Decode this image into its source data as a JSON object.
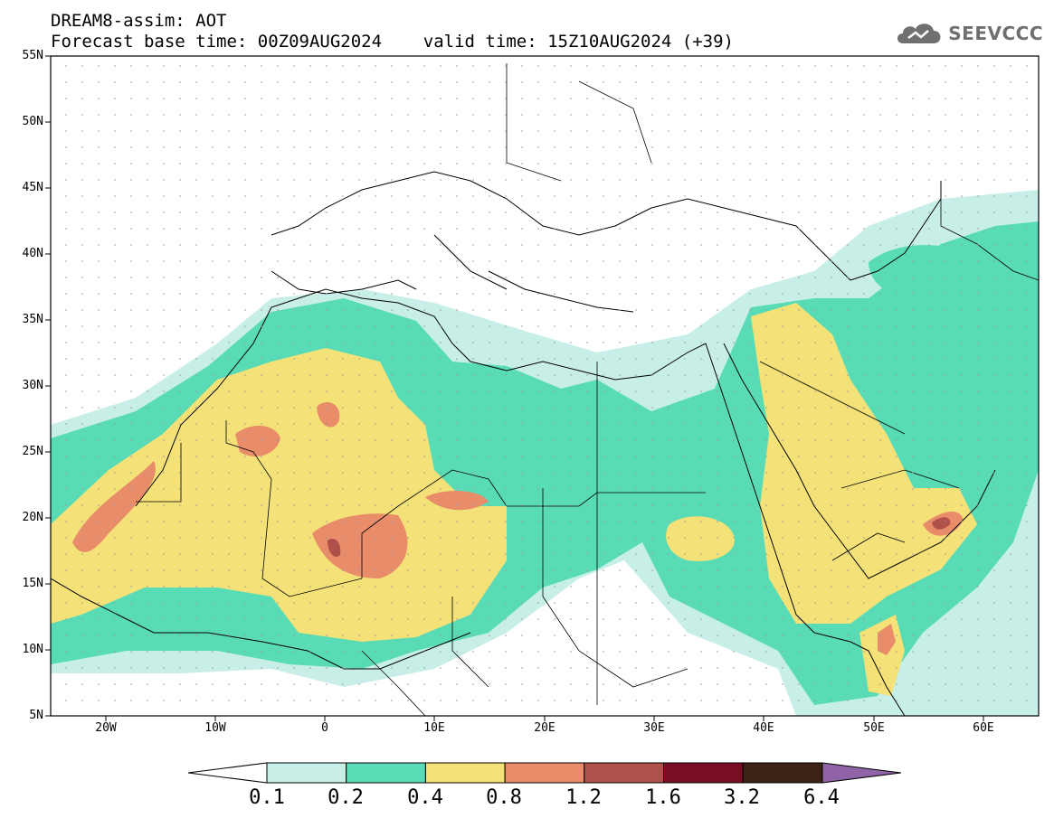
{
  "header": {
    "line1": "DREAM8-assim: AOT",
    "line2": "Forecast base time: 00Z09AUG2024    valid time: 15Z10AUG2024 (+39)"
  },
  "logo": {
    "text": "SEEVCCC",
    "icon": "cloud-logo-icon"
  },
  "map": {
    "lat_labels": [
      "55N",
      "50N",
      "45N",
      "40N",
      "35N",
      "30N",
      "25N",
      "20N",
      "15N",
      "10N",
      "5N"
    ],
    "lon_labels": [
      "20W",
      "10W",
      "0",
      "10E",
      "20E",
      "30E",
      "40E",
      "50E",
      "60E"
    ],
    "lon_range": [
      -25,
      65
    ],
    "lat_range": [
      5,
      55
    ]
  },
  "colorbar": {
    "labels": [
      "0.1",
      "0.2",
      "0.4",
      "0.8",
      "1.2",
      "1.6",
      "3.2",
      "6.4"
    ],
    "colors": [
      "#ffffff",
      "#c7efe7",
      "#59dcb5",
      "#f4e177",
      "#e88c6a",
      "#b0504a",
      "#7a0e24",
      "#3d2216",
      "#8f63a6"
    ]
  }
}
